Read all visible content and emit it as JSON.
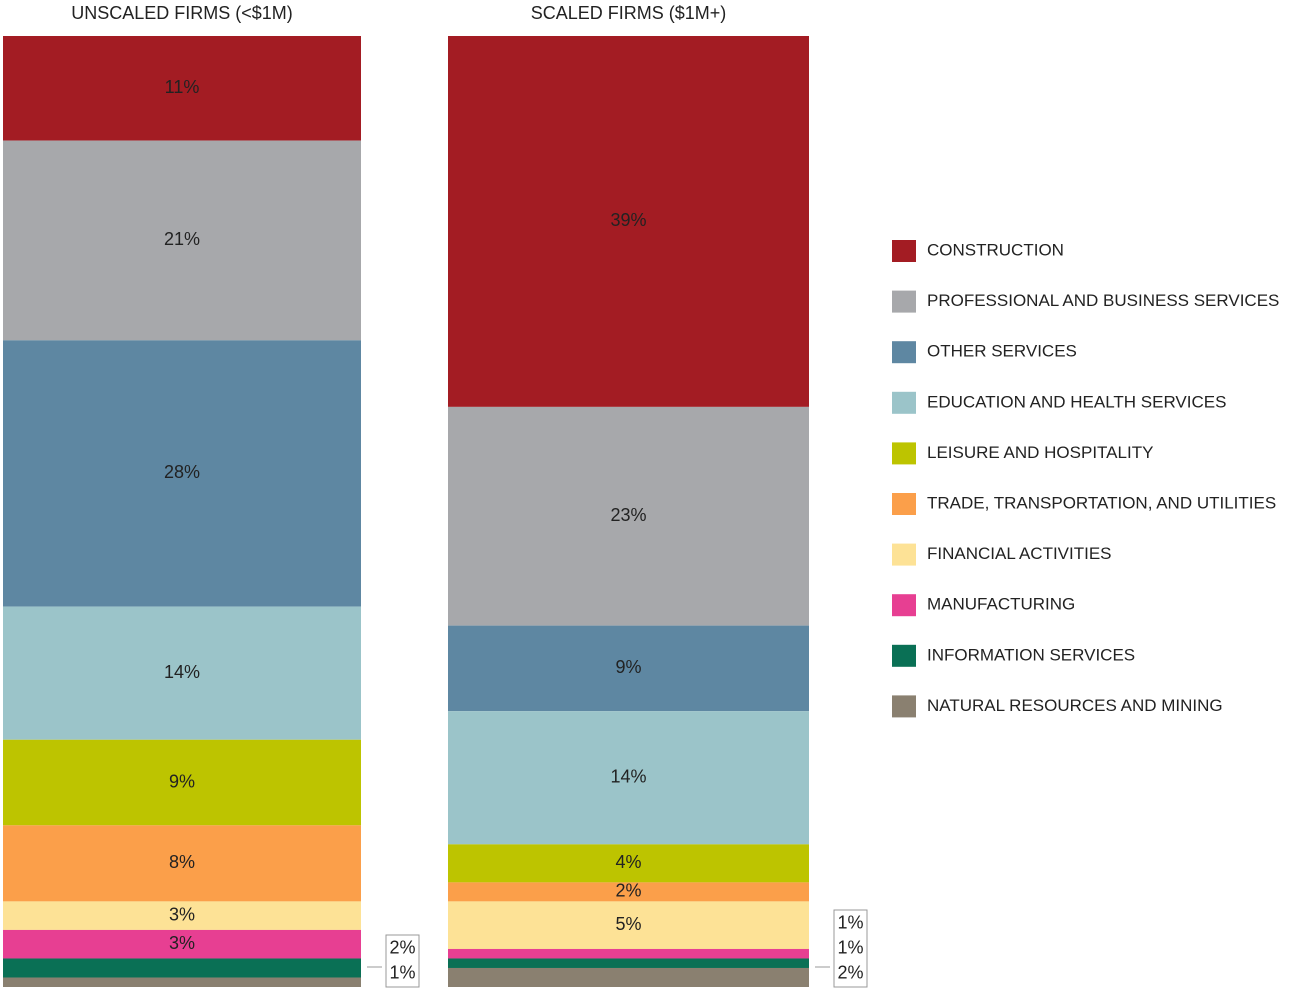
{
  "chart_data": {
    "type": "stacked_bar",
    "categories": [
      "UNSCALED FIRMS (<$1M)",
      "SCALED FIRMS ($1M+)"
    ],
    "ylim": [
      0,
      100
    ],
    "legend": "right",
    "series": [
      {
        "name": "CONSTRUCTION",
        "color": "#a31c23",
        "values": [
          11,
          39
        ],
        "value_labels": [
          "11%",
          "39%"
        ]
      },
      {
        "name": "PROFESSIONAL AND BUSINESS SERVICES",
        "color": "#a7a8ab",
        "values": [
          21,
          23
        ],
        "value_labels": [
          "21%",
          "23%"
        ]
      },
      {
        "name": "OTHER SERVICES",
        "color": "#5e87a2",
        "values": [
          28,
          9
        ],
        "value_labels": [
          "28%",
          "9%"
        ]
      },
      {
        "name": "EDUCATION AND HEALTH SERVICES",
        "color": "#9bc4c9",
        "values": [
          14,
          14
        ],
        "value_labels": [
          "14%",
          "14%"
        ]
      },
      {
        "name": "LEISURE AND HOSPITALITY",
        "color": "#bdc400",
        "values": [
          9,
          4
        ],
        "value_labels": [
          "9%",
          "4%"
        ]
      },
      {
        "name": "TRADE, TRANSPORTATION, AND UTILITIES",
        "color": "#fb9f4a",
        "values": [
          8,
          2
        ],
        "value_labels": [
          "8%",
          "2%"
        ]
      },
      {
        "name": "FINANCIAL ACTIVITIES",
        "color": "#fde296",
        "values": [
          3,
          5
        ],
        "value_labels": [
          "3%",
          "5%"
        ]
      },
      {
        "name": "MANUFACTURING",
        "color": "#e73f92",
        "values": [
          3,
          1
        ],
        "value_labels": [
          "3%",
          "1%"
        ]
      },
      {
        "name": "INFORMATION SERVICES",
        "color": "#0a7055",
        "values": [
          2,
          1
        ],
        "value_labels": [
          "2%",
          "1%"
        ]
      },
      {
        "name": "NATURAL RESOURCES AND MINING",
        "color": "#8a8070",
        "values": [
          1,
          2
        ],
        "value_labels": [
          "1%",
          "2%"
        ]
      }
    ]
  }
}
